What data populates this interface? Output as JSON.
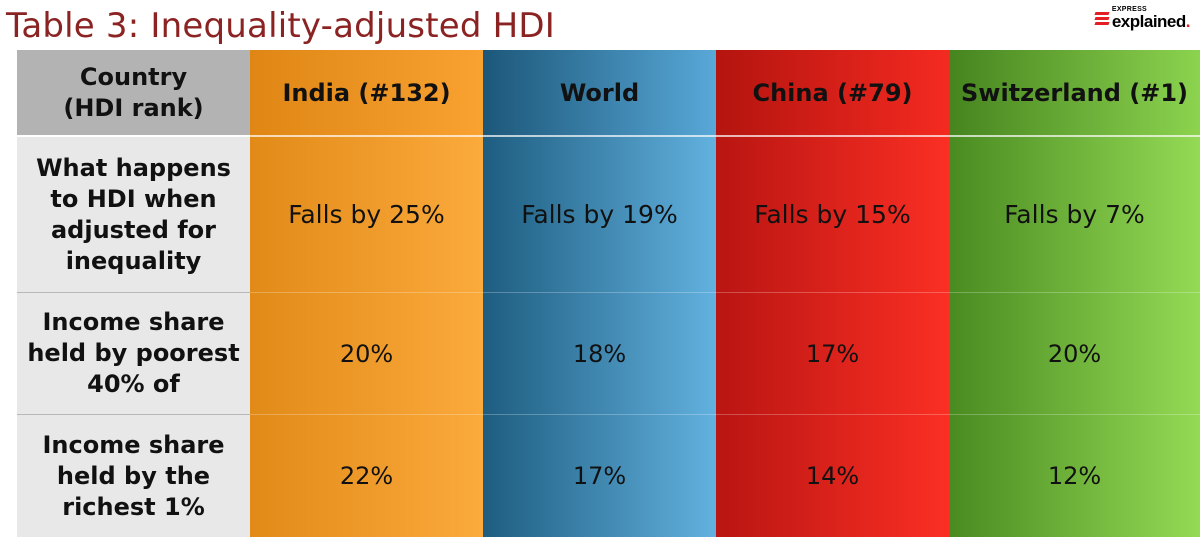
{
  "title": "Table 3: Inequality-adjusted HDI",
  "logo": {
    "express": "EXPRESS",
    "explained": "explained",
    "dot": "."
  },
  "table": {
    "header_label": [
      "Country",
      "(HDI rank)"
    ],
    "columns": [
      {
        "name": "India (#132)",
        "color": "#f39c2c"
      },
      {
        "name": "World",
        "color": "#3d8bbb"
      },
      {
        "name": "China (#79)",
        "color": "#e0211b"
      },
      {
        "name": "Switzerland (#1)",
        "color": "#6fb43a"
      }
    ],
    "rows": [
      {
        "label": [
          "What happens",
          "to HDI when",
          "adjusted for",
          "inequality"
        ],
        "values": [
          "Falls by 25%",
          "Falls by 19%",
          "Falls by 15%",
          "Falls by 7%"
        ]
      },
      {
        "label": [
          "Income share",
          "held by poorest",
          "40% of"
        ],
        "values": [
          "20%",
          "18%",
          "17%",
          "20%"
        ]
      },
      {
        "label": [
          "Income share",
          "held by the",
          "richest 1%"
        ],
        "values": [
          "22%",
          "17%",
          "14%",
          "12%"
        ]
      }
    ]
  }
}
